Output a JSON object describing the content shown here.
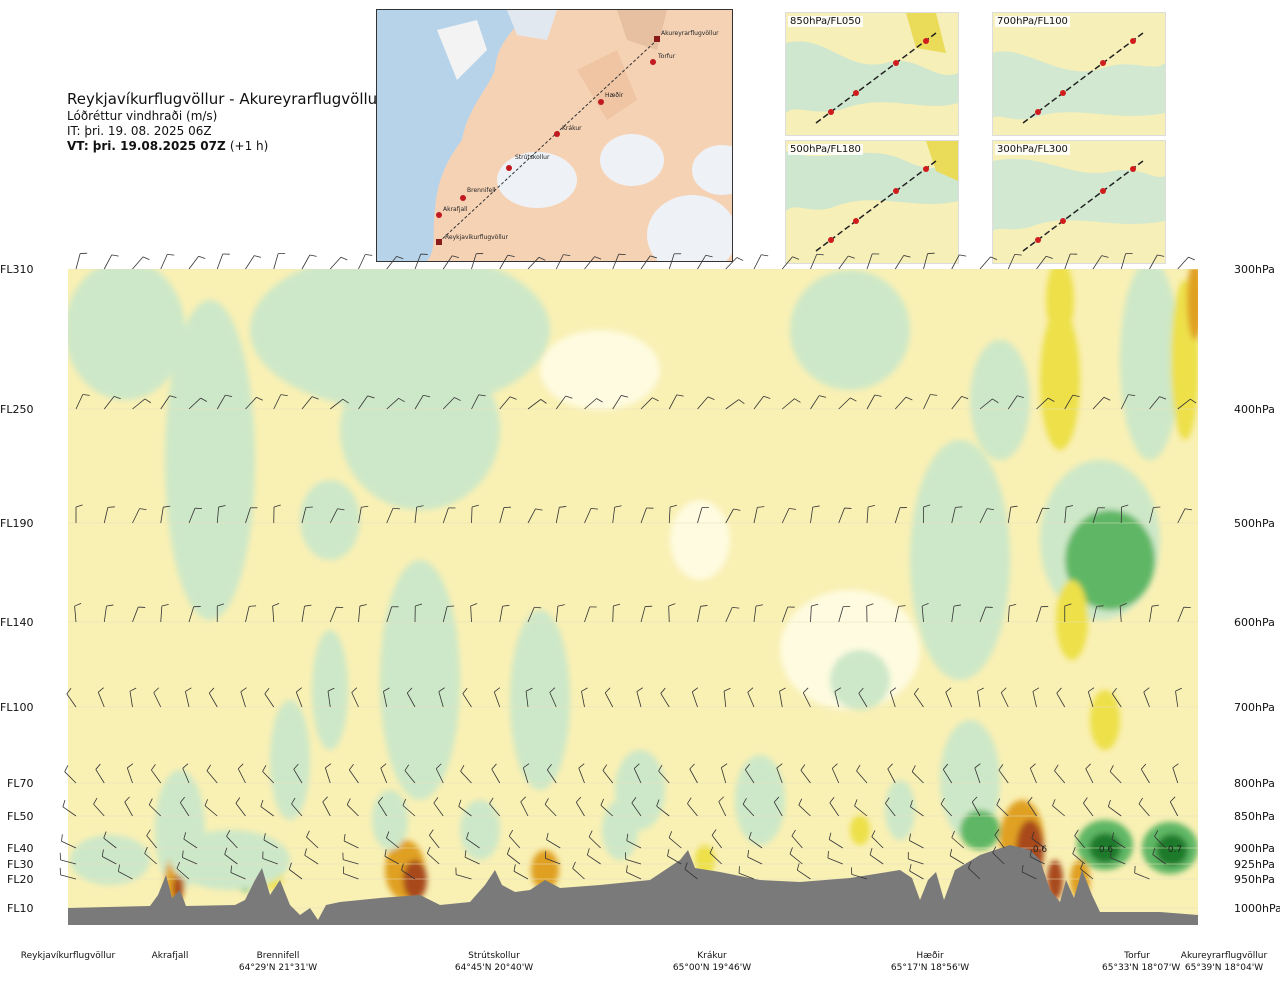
{
  "header": {
    "route": "Reykjavíkurflugvöllur - Akureyrarflugvöllur",
    "parameter": "Lóðréttur vindhraði (m/s)",
    "issue_time": "IT: þri. 19. 08. 2025 06Z",
    "valid_time": "VT: þri. 19.08.2025 07Z",
    "lead_time": "(+1 h)"
  },
  "route_map": {
    "waypoints": [
      "Akureyrarflugvöllur",
      "Torfur",
      "Hæðir",
      "Krákur",
      "Strútskollur",
      "Brennifell",
      "Akrafjall",
      "Reykjavíkurflugvöllur"
    ]
  },
  "level_maps": [
    {
      "label": "850hPa/FL050"
    },
    {
      "label": "700hPa/FL100"
    },
    {
      "label": "500hPa/FL180"
    },
    {
      "label": "300hPa/FL300"
    }
  ],
  "chart_data": {
    "type": "heatmap",
    "title": "Lóðréttur vindhraði (m/s)",
    "flight_levels": [
      "FL310",
      "FL250",
      "FL190",
      "FL140",
      "FL100",
      "FL70",
      "FL50",
      "FL40",
      "FL30",
      "FL20",
      "FL10"
    ],
    "pressure_levels": [
      "300hPa",
      "400hPa",
      "500hPa",
      "600hPa",
      "700hPa",
      "800hPa",
      "850hPa",
      "900hPa",
      "925hPa",
      "950hPa",
      "1000hPa"
    ],
    "labels": [
      "0.6",
      "0.6",
      "0.7"
    ],
    "stations": [
      {
        "name": "Reykjavíkurflugvöllur",
        "coord": ""
      },
      {
        "name": "Akrafjall",
        "coord": ""
      },
      {
        "name": "Brennifell",
        "coord": "64°29'N 21°31'W"
      },
      {
        "name": "Strútskollur",
        "coord": "64°45'N 20°40'W"
      },
      {
        "name": "Krákur",
        "coord": "65°00'N 19°46'W"
      },
      {
        "name": "Hæðir",
        "coord": "65°17'N 18°56'W"
      },
      {
        "name": "Torfur",
        "coord": "65°33'N 18°07'W"
      },
      {
        "name": "Akureyrarflugvöllur",
        "coord": "65°39'N 18°04'W"
      }
    ],
    "terrain_color": "#7a7a7a",
    "colors": {
      "strong_sink": "#1a7a2a",
      "sink": "#5fb765",
      "weak_sink": "#cde8c8",
      "neutral_low": "#fefbe0",
      "neutral": "#f9f0b4",
      "weak_rise": "#ede048",
      "rise": "#e0a020",
      "strong_rise": "#a84a1e"
    }
  }
}
